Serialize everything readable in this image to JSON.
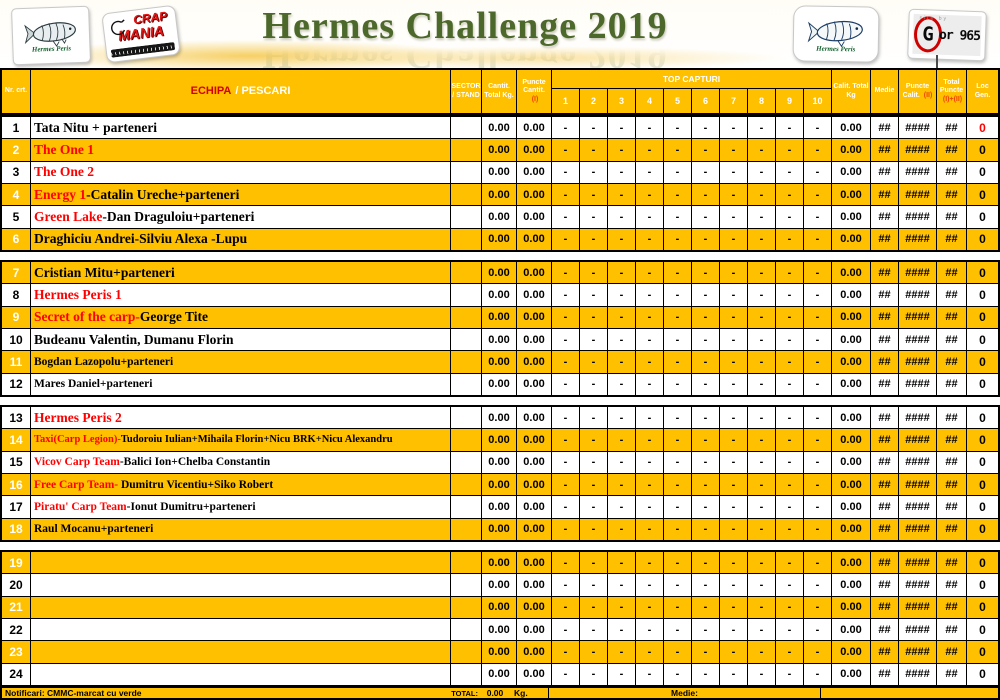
{
  "title": "Hermes Challenge 2019",
  "logos": {
    "hermes_left_label": "Hermes Peris",
    "hermes_right_label": "Hermes Peris",
    "crap_top": "CRAP",
    "crap_bottom": "MANIA",
    "gor_small": "site by",
    "gor_g": "G",
    "gor_rest": "or 965"
  },
  "thead": {
    "nr": "Nr. crt.",
    "echipa_red": "ECHIPA",
    "echipa_white": "/ PESCARI",
    "sector": "SECTOR / STAND",
    "cantit": "Cantit. Total Kg.",
    "puncte_cantit": "Puncte Cantit.",
    "puncte_cantit_sup": "(I)",
    "top_capturi": "TOP CAPTURI",
    "top_nums": [
      "1",
      "2",
      "3",
      "4",
      "5",
      "6",
      "7",
      "8",
      "9",
      "10"
    ],
    "calit": "Calit. Total Kg",
    "medie": "Medie",
    "puncte_calit": "Puncte Calit.",
    "puncte_calit_sup": "(II)",
    "total_puncte": "Total Puncte",
    "total_puncte_sup": "(I)+(II)",
    "loc": "Loc Gen."
  },
  "row_defaults": {
    "sector": "",
    "cantit": "0.00",
    "puncte_cantit": "0.00",
    "dash": "-",
    "calit": "0.00",
    "medie": "##",
    "puncte_calit": "####",
    "total_puncte": "##",
    "loc": "0"
  },
  "group_start_shade": [
    "white",
    "orange",
    "white",
    "orange"
  ],
  "groups": [
    [
      {
        "nr": "1",
        "red": "",
        "black": "Tata Nitu + parteneri",
        "loc_red": true
      },
      {
        "nr": "2",
        "red": "The One 1",
        "black": ""
      },
      {
        "nr": "3",
        "red": "The One 2",
        "black": ""
      },
      {
        "nr": "4",
        "red": "Energy 1",
        "black": "-Catalin Ureche+parteneri"
      },
      {
        "nr": "5",
        "red": "Green Lake",
        "black": "-Dan Draguloiu+parteneri"
      },
      {
        "nr": "6",
        "red": "",
        "black": "Draghiciu Andrei-Silviu Alexa -Lupu"
      }
    ],
    [
      {
        "nr": "7",
        "red": "",
        "black": "Cristian Mitu+parteneri"
      },
      {
        "nr": "8",
        "red": "Hermes Peris 1",
        "black": ""
      },
      {
        "nr": "9",
        "red": "Secret of the carp-",
        "black": "George Tite"
      },
      {
        "nr": "10",
        "red": "",
        "black": "Budeanu Valentin, Dumanu Florin"
      },
      {
        "nr": "11",
        "red": "",
        "black": "Bogdan Lazopolu+parteneri",
        "size": "sm"
      },
      {
        "nr": "12",
        "red": "",
        "black": "Mares Daniel+parteneri",
        "size": "sm"
      }
    ],
    [
      {
        "nr": "13",
        "red": "Hermes Peris 2",
        "black": ""
      },
      {
        "nr": "14",
        "red": "Taxi(Carp Legion)-",
        "black": "Tudoroiu Iulian+Mihaila Florin+Nicu BRK+Nicu Alexandru",
        "size": "xs"
      },
      {
        "nr": "15",
        "red": "Vicov Carp Team",
        "black": "-Balici Ion+Chelba Constantin",
        "size": "sm"
      },
      {
        "nr": "16",
        "red": "Free Carp Team-",
        "black": " Dumitru Vicentiu+Siko Robert",
        "size": "sm"
      },
      {
        "nr": "17",
        "red": "Piratu' Carp Team",
        "black": "-Ionut Dumitru+parteneri",
        "size": "sm"
      },
      {
        "nr": "18",
        "red": "",
        "black": "Raul Mocanu+parteneri",
        "size": "sm"
      }
    ],
    [
      {
        "nr": "19"
      },
      {
        "nr": "20"
      },
      {
        "nr": "21"
      },
      {
        "nr": "22"
      },
      {
        "nr": "23"
      },
      {
        "nr": "24"
      }
    ]
  ],
  "footer": {
    "notificari": "Notificari: CMMC-marcat cu verde",
    "total_label": "TOTAL:",
    "total_value": "0.00",
    "total_unit": "Kg.",
    "medie_label": "Medie:"
  },
  "colors": {
    "row_orange": "#FFC000",
    "team_red": "#FF0000",
    "header_red": "#D40000",
    "title_green": "#4D682B"
  }
}
